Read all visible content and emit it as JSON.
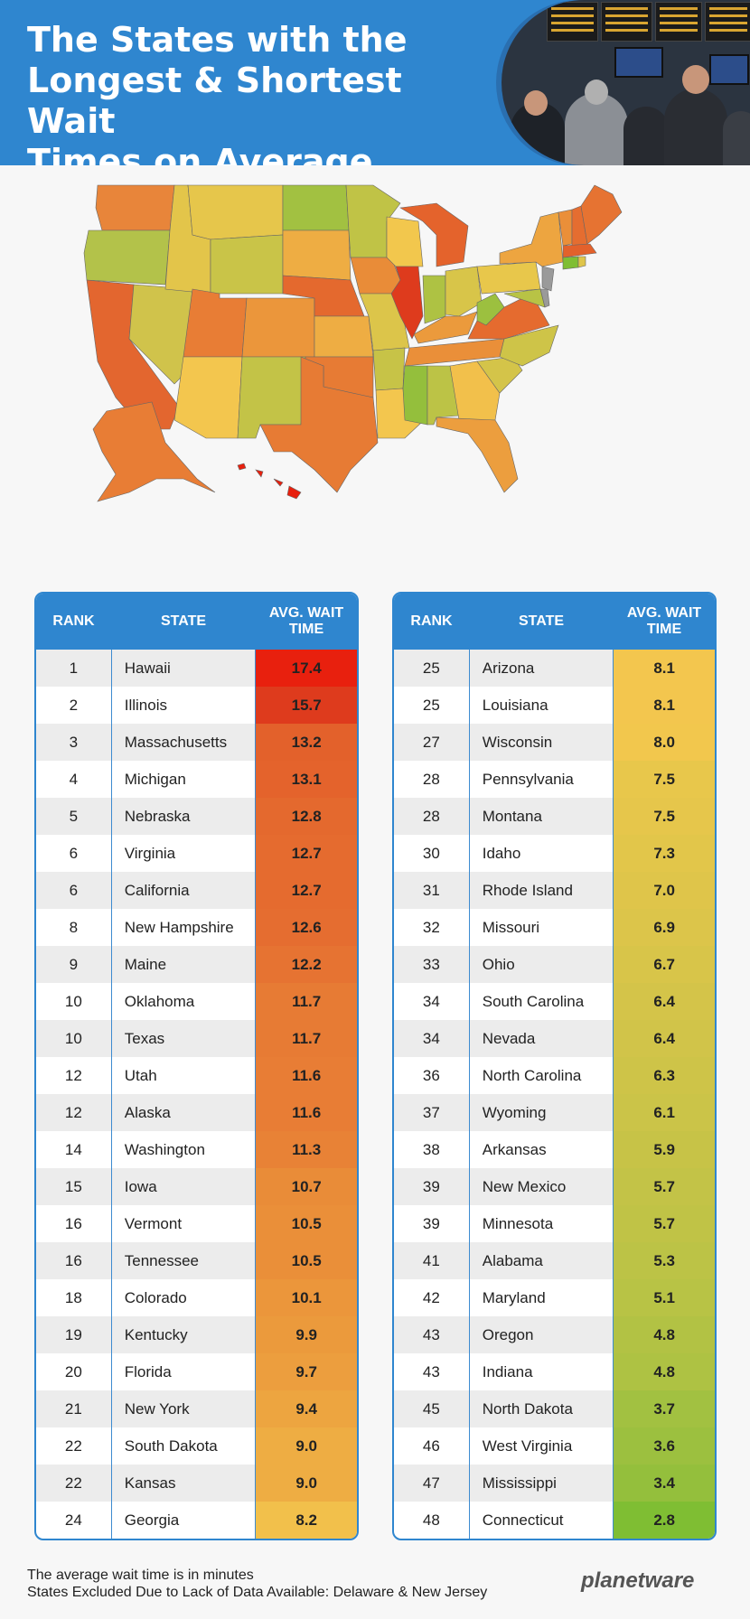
{
  "header": {
    "title": "The States with the\nLongest & Shortest Wait\nTimes on Average"
  },
  "table_headers": {
    "rank": "RANK",
    "state": "STATE",
    "wait": "AVG. WAIT\nTIME"
  },
  "left_table": [
    {
      "rank": "1",
      "state": "Hawaii",
      "wait": "17.4",
      "color": "#e8200e"
    },
    {
      "rank": "2",
      "state": "Illinois",
      "wait": "15.7",
      "color": "#de3b1d"
    },
    {
      "rank": "3",
      "state": "Massachusetts",
      "wait": "13.2",
      "color": "#e3612b"
    },
    {
      "rank": "4",
      "state": "Michigan",
      "wait": "13.1",
      "color": "#e4632c"
    },
    {
      "rank": "5",
      "state": "Nebraska",
      "wait": "12.8",
      "color": "#e4692e"
    },
    {
      "rank": "6",
      "state": "Virginia",
      "wait": "12.7",
      "color": "#e56b2f"
    },
    {
      "rank": "6",
      "state": "California",
      "wait": "12.7",
      "color": "#e56b2f"
    },
    {
      "rank": "8",
      "state": "New Hampshire",
      "wait": "12.6",
      "color": "#e56d30"
    },
    {
      "rank": "9",
      "state": "Maine",
      "wait": "12.2",
      "color": "#e67332"
    },
    {
      "rank": "10",
      "state": "Oklahoma",
      "wait": "11.7",
      "color": "#e77b34"
    },
    {
      "rank": "10",
      "state": "Texas",
      "wait": "11.7",
      "color": "#e77b34"
    },
    {
      "rank": "12",
      "state": "Utah",
      "wait": "11.6",
      "color": "#e87d35"
    },
    {
      "rank": "12",
      "state": "Alaska",
      "wait": "11.6",
      "color": "#e87d35"
    },
    {
      "rank": "14",
      "state": "Washington",
      "wait": "11.3",
      "color": "#e88236"
    },
    {
      "rank": "15",
      "state": "Iowa",
      "wait": "10.7",
      "color": "#e98c38"
    },
    {
      "rank": "16",
      "state": "Vermont",
      "wait": "10.5",
      "color": "#ea8f39"
    },
    {
      "rank": "16",
      "state": "Tennessee",
      "wait": "10.5",
      "color": "#ea8f39"
    },
    {
      "rank": "18",
      "state": "Colorado",
      "wait": "10.1",
      "color": "#eb963b"
    },
    {
      "rank": "19",
      "state": "Kentucky",
      "wait": "9.9",
      "color": "#eb9a3c"
    },
    {
      "rank": "20",
      "state": "Florida",
      "wait": "9.7",
      "color": "#ec9e3e"
    },
    {
      "rank": "21",
      "state": "New York",
      "wait": "9.4",
      "color": "#eda540"
    },
    {
      "rank": "22",
      "state": "South Dakota",
      "wait": "9.0",
      "color": "#eead43"
    },
    {
      "rank": "22",
      "state": "Kansas",
      "wait": "9.0",
      "color": "#eead43"
    },
    {
      "rank": "24",
      "state": "Georgia",
      "wait": "8.2",
      "color": "#f2c04b"
    }
  ],
  "right_table": [
    {
      "rank": "25",
      "state": "Arizona",
      "wait": "8.1",
      "color": "#f3c64e"
    },
    {
      "rank": "25",
      "state": "Louisiana",
      "wait": "8.1",
      "color": "#f3c64e"
    },
    {
      "rank": "27",
      "state": "Wisconsin",
      "wait": "8.0",
      "color": "#f2c74d"
    },
    {
      "rank": "28",
      "state": "Pennsylvania",
      "wait": "7.5",
      "color": "#e8c74b"
    },
    {
      "rank": "28",
      "state": "Montana",
      "wait": "7.5",
      "color": "#e6c64b"
    },
    {
      "rank": "30",
      "state": "Idaho",
      "wait": "7.3",
      "color": "#e2c64a"
    },
    {
      "rank": "31",
      "state": "Rhode Island",
      "wait": "7.0",
      "color": "#dfc54a"
    },
    {
      "rank": "32",
      "state": "Missouri",
      "wait": "6.9",
      "color": "#dcc54a"
    },
    {
      "rank": "33",
      "state": "Ohio",
      "wait": "6.7",
      "color": "#d8c549"
    },
    {
      "rank": "34",
      "state": "South Carolina",
      "wait": "6.4",
      "color": "#d4c449"
    },
    {
      "rank": "34",
      "state": "Nevada",
      "wait": "6.4",
      "color": "#d1c449"
    },
    {
      "rank": "36",
      "state": "North Carolina",
      "wait": "6.3",
      "color": "#cec448"
    },
    {
      "rank": "37",
      "state": "Wyoming",
      "wait": "6.1",
      "color": "#cbc448"
    },
    {
      "rank": "38",
      "state": "Arkansas",
      "wait": "5.9",
      "color": "#c7c347"
    },
    {
      "rank": "39",
      "state": "New Mexico",
      "wait": "5.7",
      "color": "#c3c347"
    },
    {
      "rank": "39",
      "state": "Minnesota",
      "wait": "5.7",
      "color": "#c0c346"
    },
    {
      "rank": "41",
      "state": "Alabama",
      "wait": "5.3",
      "color": "#bcc346"
    },
    {
      "rank": "42",
      "state": "Maryland",
      "wait": "5.1",
      "color": "#b8c345"
    },
    {
      "rank": "43",
      "state": "Oregon",
      "wait": "4.8",
      "color": "#b2c244"
    },
    {
      "rank": "43",
      "state": "Indiana",
      "wait": "4.8",
      "color": "#aec243"
    },
    {
      "rank": "45",
      "state": "North Dakota",
      "wait": "3.7",
      "color": "#a2c141"
    },
    {
      "rank": "46",
      "state": "West Virginia",
      "wait": "3.6",
      "color": "#9cc03f"
    },
    {
      "rank": "47",
      "state": "Mississippi",
      "wait": "3.4",
      "color": "#94bf3c"
    },
    {
      "rank": "48",
      "state": "Connecticut",
      "wait": "2.8",
      "color": "#7fbe33"
    }
  ],
  "footnote": {
    "line1": "The average wait time is in minutes",
    "line2": "States Excluded Due to Lack of Data Available: Delaware & New Jersey"
  },
  "logo": "planetware",
  "map_colors": {
    "washington": "#e8853a",
    "oregon": "#b3c24a",
    "california": "#e3662f",
    "nevada": "#d0c34b",
    "idaho": "#e3c54a",
    "montana": "#e6c64b",
    "wyoming": "#c9c448",
    "utah": "#e87d35",
    "arizona": "#f3c64e",
    "colorado": "#eb963b",
    "new_mexico": "#c3c347",
    "north_dakota": "#a2c141",
    "south_dakota": "#eead43",
    "nebraska": "#e4692e",
    "kansas": "#eead43",
    "oklahoma": "#e77b34",
    "texas": "#e77b34",
    "minnesota": "#c0c346",
    "iowa": "#e98c38",
    "missouri": "#dcc54a",
    "arkansas": "#c7c347",
    "louisiana": "#f3c64e",
    "wisconsin": "#f2c74d",
    "illinois": "#de3b1d",
    "michigan": "#e4632c",
    "indiana": "#aec243",
    "ohio": "#d8c549",
    "kentucky": "#eb9a3c",
    "tennessee": "#ea8f39",
    "mississippi": "#94bf3c",
    "alabama": "#bcc346",
    "georgia": "#f2c04b",
    "florida": "#ec9e3e",
    "south_carolina": "#d4c449",
    "north_carolina": "#cec448",
    "virginia": "#e56b2f",
    "west_virginia": "#9cc03f",
    "pennsylvania": "#e8c74b",
    "new_york": "#eda540",
    "maryland": "#b8c345",
    "new_jersey": "#9a9a9a",
    "delaware": "#9a9a9a",
    "vermont": "#ea8f39",
    "new_hampshire": "#e56d30",
    "maine": "#e67332",
    "massachusetts": "#e3612b",
    "connecticut": "#7fbe33",
    "rhode_island": "#dfc54a",
    "alaska": "#e87d35",
    "hawaii": "#e8200e"
  }
}
